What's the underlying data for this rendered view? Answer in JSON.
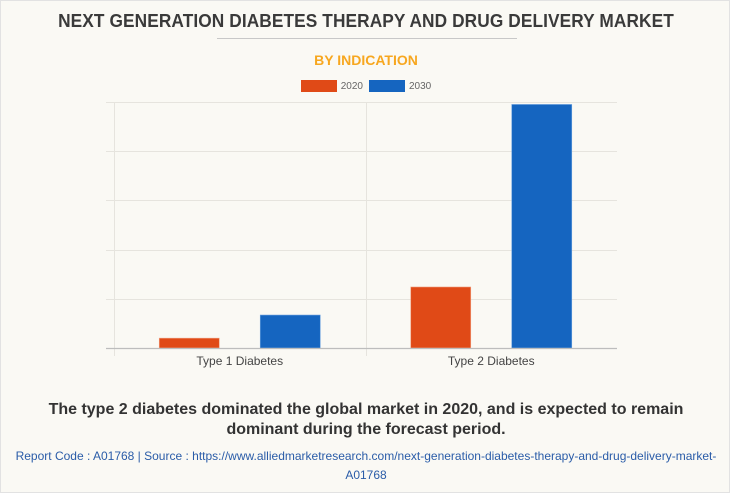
{
  "header": {
    "title": "NEXT GENERATION DIABETES THERAPY AND DRUG DELIVERY MARKET",
    "subtitle": "BY INDICATION"
  },
  "colors": {
    "series_2020": "#e04a17",
    "series_2030": "#1565c0",
    "subtitle": "#f7a71f",
    "background": "#faf9f4"
  },
  "chart_data": {
    "type": "bar",
    "title": "NEXT GENERATION DIABETES THERAPY AND DRUG DELIVERY MARKET",
    "subtitle": "BY INDICATION",
    "categories": [
      "Type 1 Diabetes",
      "Type 2 Diabetes"
    ],
    "series": [
      {
        "name": "2020",
        "color": "#e04a17",
        "values": [
          0.2,
          1.24
        ]
      },
      {
        "name": "2030",
        "color": "#1565c0",
        "values": [
          0.67,
          4.95
        ]
      }
    ],
    "xlabel": "",
    "ylabel": "",
    "ylim": [
      0,
      5
    ],
    "y_gridlines": [
      0,
      1,
      2,
      3,
      4,
      5
    ],
    "y_tick_labels_shown": false,
    "grid": true,
    "legend": "top-center",
    "units_note": "Relative values estimated from gridlines; no axis values shown"
  },
  "footer": {
    "caption": "The type 2 diabetes dominated the global market in 2020, and is expected to remain dominant during the forecast period.",
    "source_line1": "Report Code : A01768  |  Source : https://www.alliedmarketresearch.com/next-generation-diabetes-therapy-and-drug-delivery-market-",
    "source_line2": "A01768"
  }
}
